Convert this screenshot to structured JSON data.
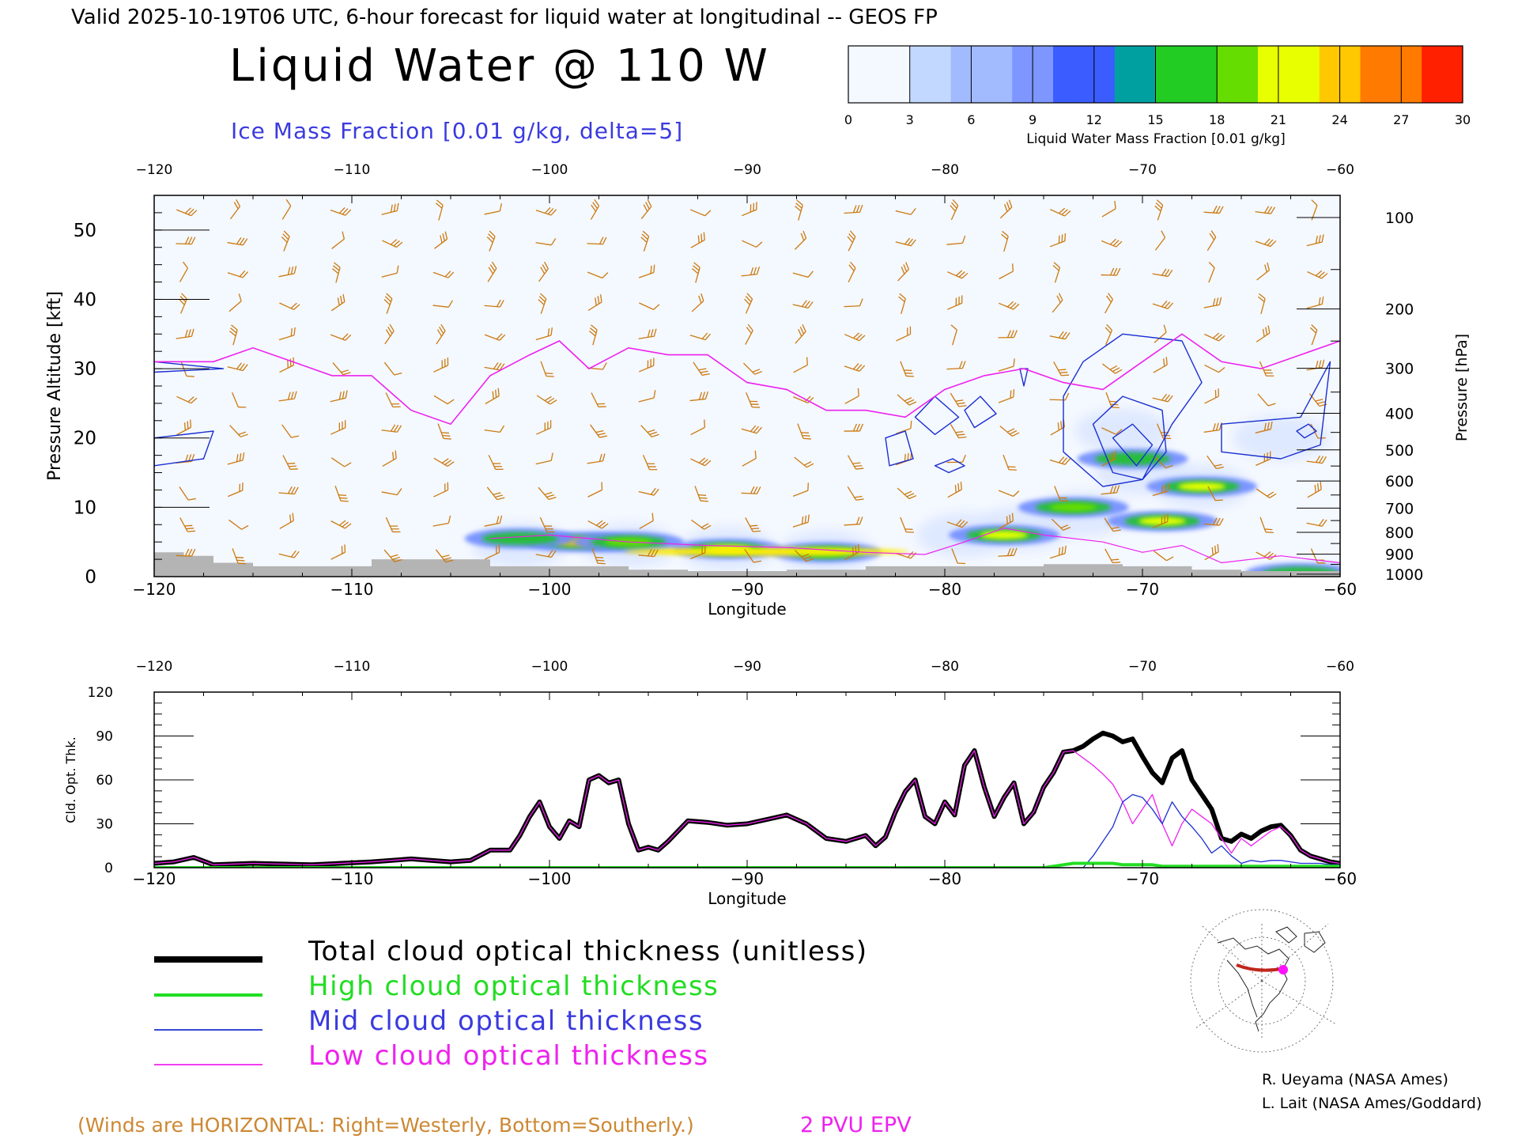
{
  "header": {
    "valid_line": "Valid 2025-10-19T06 UTC, 6-hour forecast for liquid water at longitudinal -- GEOS FP",
    "main_title": "Liquid Water @ 110 W",
    "subtitle": "Ice Mass Fraction [0.01 g/kg, delta=5]"
  },
  "colorbar": {
    "ticks": [
      "0",
      "3",
      "6",
      "9",
      "12",
      "15",
      "18",
      "21",
      "24",
      "27",
      "30"
    ],
    "label": "Liquid Water Mass Fraction [0.01 g/kg]",
    "colors": [
      "#f4f8ff",
      "#c3d8ff",
      "#a2bbff",
      "#7e96ff",
      "#3b5cff",
      "#00a0a0",
      "#22cc22",
      "#66dd00",
      "#e8ff00",
      "#ffc800",
      "#ff7a00",
      "#ff2000"
    ]
  },
  "colors": {
    "liquid_water_low": "#9ab0ff",
    "liquid_water_mid": "#28c030",
    "liquid_water_high": "#ffee00",
    "liquid_water_peak": "#ff5000",
    "ice_contour": "#1a2fd0",
    "epv_contour": "#ee22ee",
    "wind_barbs": "#cc7a10",
    "terrain": "#b4b4b4",
    "total": "#000000",
    "high": "#22dd22",
    "mid": "#1a2fd0",
    "low": "#ee22ee"
  },
  "chart_data": [
    {
      "type": "heatmap",
      "panel": "cross-section",
      "x_ticks": [
        "-120",
        "-110",
        "-100",
        "-90",
        "-80",
        "-70",
        "-60"
      ],
      "top_x_ticks": [
        "-120",
        "-110",
        "-100",
        "-90",
        "-80",
        "-70",
        "-60"
      ],
      "xlabel": "Longitude",
      "xlim": [
        -120,
        -60
      ],
      "ylabel_left": "Pressure Altitude [kft]",
      "yticks_left": [
        "0",
        "10",
        "20",
        "30",
        "40",
        "50"
      ],
      "ylim_kft": [
        0,
        55
      ],
      "ylabel_right": "Pressure [hPa]",
      "yticks_right": [
        "100",
        "200",
        "300",
        "400",
        "500",
        "600",
        "700",
        "800",
        "900",
        "1000"
      ],
      "liquid_water_regions": [
        {
          "lon": -98.5,
          "kft": 5.0,
          "value": 24
        },
        {
          "lon": -96.0,
          "kft": 5.0,
          "value": 18
        },
        {
          "lon": -101.5,
          "kft": 5.5,
          "value": 15
        },
        {
          "lon": -91.0,
          "kft": 4.0,
          "value": 20
        },
        {
          "lon": -86.0,
          "kft": 3.5,
          "value": 18
        },
        {
          "lon": -77.0,
          "kft": 6.0,
          "value": 21
        },
        {
          "lon": -73.5,
          "kft": 10.0,
          "value": 18
        },
        {
          "lon": -70.5,
          "kft": 17.0,
          "value": 16
        },
        {
          "lon": -69.0,
          "kft": 8.0,
          "value": 20
        },
        {
          "lon": -67.0,
          "kft": 13.0,
          "value": 20
        },
        {
          "lon": -62.0,
          "kft": 0.5,
          "value": 12
        }
      ],
      "epv_2pvu_line": {
        "lon": [
          -120,
          -117,
          -115,
          -113,
          -111,
          -109,
          -107,
          -105,
          -103,
          -101,
          -99.5,
          -98,
          -96,
          -94,
          -92,
          -90,
          -88,
          -86,
          -84,
          -82,
          -80,
          -78,
          -76,
          -74,
          -72,
          -70,
          -68,
          -66,
          -64,
          -62,
          -60
        ],
        "kft": [
          31,
          31,
          33,
          31,
          29,
          29,
          24,
          22,
          29,
          32,
          34,
          30,
          33,
          32,
          32,
          28,
          27,
          24,
          24,
          23,
          27,
          29,
          30,
          28,
          27,
          31,
          35,
          31,
          30,
          32,
          34
        ]
      },
      "terrain_kft": {
        "lon": [
          -120,
          -118.5,
          -117,
          -115,
          -110.5,
          -109,
          -104,
          -103,
          -100,
          -96,
          -93,
          -88,
          -84,
          -79,
          -75,
          -71,
          -67.5,
          -65,
          -60
        ],
        "kft": [
          3.5,
          3.0,
          2.0,
          1.5,
          1.5,
          2.5,
          2.5,
          1.5,
          1.5,
          1.0,
          0.8,
          1.0,
          1.5,
          1.5,
          1.8,
          1.5,
          1.0,
          0.8,
          0.5
        ]
      }
    },
    {
      "type": "line",
      "panel": "optical-thickness",
      "xlabel": "Longitude",
      "ylabel": "Cld. Opt. Thk.",
      "xlim": [
        -120,
        -60
      ],
      "ylim": [
        0,
        120
      ],
      "x_ticks": [
        "-120",
        "-110",
        "-100",
        "-90",
        "-80",
        "-70",
        "-60"
      ],
      "top_x_ticks": [
        "-120",
        "-110",
        "-100",
        "-90",
        "-80",
        "-70",
        "-60"
      ],
      "y_ticks": [
        "0",
        "30",
        "60",
        "90",
        "120"
      ],
      "x": [
        -120,
        -119,
        -118,
        -117,
        -115,
        -112,
        -109,
        -107,
        -105,
        -104,
        -103,
        -102,
        -101.5,
        -101,
        -100.5,
        -100,
        -99.5,
        -99,
        -98.5,
        -98,
        -97.5,
        -97,
        -96.5,
        -96,
        -95.5,
        -95,
        -94.5,
        -94,
        -93,
        -92,
        -91,
        -90,
        -89,
        -88,
        -87,
        -86,
        -85,
        -84,
        -83.5,
        -83,
        -82.5,
        -82,
        -81.5,
        -81,
        -80.5,
        -80,
        -79.5,
        -79,
        -78.5,
        -78,
        -77.5,
        -77,
        -76.5,
        -76,
        -75.5,
        -75,
        -74.5,
        -74,
        -73.5,
        -73,
        -72.5,
        -72,
        -71.5,
        -71,
        -70.5,
        -70,
        -69.5,
        -69,
        -68.5,
        -68,
        -67.5,
        -67,
        -66.5,
        -66,
        -65.5,
        -65,
        -64.5,
        -64,
        -63.5,
        -63,
        -62.5,
        -62,
        -61.5,
        -61,
        -60.5,
        -60
      ],
      "series": [
        {
          "name": "Total cloud optical thickness (unitless)",
          "role": "total",
          "values": [
            3,
            4,
            7,
            2,
            3,
            2,
            4,
            6,
            4,
            5,
            12,
            12,
            22,
            35,
            45,
            28,
            20,
            32,
            28,
            60,
            63,
            58,
            60,
            30,
            12,
            14,
            12,
            18,
            32,
            31,
            29,
            30,
            33,
            36,
            30,
            20,
            18,
            22,
            15,
            21,
            38,
            52,
            60,
            35,
            30,
            45,
            36,
            70,
            80,
            55,
            35,
            48,
            58,
            30,
            38,
            55,
            65,
            79,
            80,
            83,
            88,
            92,
            90,
            86,
            88,
            76,
            65,
            58,
            75,
            80,
            60,
            50,
            40,
            20,
            18,
            23,
            20,
            25,
            28,
            29,
            22,
            12,
            8,
            6,
            4,
            3
          ]
        },
        {
          "name": "High cloud optical thickness",
          "role": "high",
          "values": [
            0,
            0,
            0,
            0,
            0,
            0,
            0,
            0,
            0,
            0,
            0,
            0,
            0,
            0,
            0,
            0,
            0,
            0,
            0,
            0,
            0,
            0,
            0,
            0,
            0,
            0,
            0,
            0,
            0,
            0,
            0,
            0,
            0,
            0,
            0,
            0,
            0,
            0,
            0,
            0,
            0,
            0,
            0,
            0,
            0,
            0,
            0,
            0,
            0,
            0,
            0,
            0,
            0,
            0,
            0,
            0,
            1,
            2,
            3,
            3,
            3,
            3,
            3,
            2,
            2,
            2,
            2,
            1,
            1,
            1,
            1,
            1,
            1,
            1,
            1,
            1,
            1,
            1,
            1,
            1,
            1,
            1,
            1,
            1,
            1,
            1
          ]
        },
        {
          "name": "Mid cloud optical thickness",
          "role": "mid",
          "values": [
            0,
            0,
            0,
            0,
            0,
            0,
            0,
            0,
            0,
            0,
            0,
            0,
            0,
            0,
            0,
            0,
            0,
            0,
            0,
            0,
            0,
            0,
            0,
            0,
            0,
            0,
            0,
            0,
            0,
            0,
            0,
            0,
            0,
            0,
            0,
            0,
            0,
            0,
            0,
            0,
            0,
            0,
            0,
            0,
            0,
            0,
            0,
            0,
            0,
            0,
            0,
            0,
            0,
            0,
            0,
            0,
            0,
            0,
            0,
            0,
            8,
            18,
            28,
            45,
            50,
            48,
            40,
            30,
            45,
            35,
            28,
            20,
            10,
            15,
            8,
            3,
            5,
            4,
            5,
            5,
            4,
            3,
            3,
            3,
            2,
            2
          ]
        },
        {
          "name": "Low cloud optical thickness",
          "role": "low",
          "values": [
            3,
            4,
            7,
            2,
            3,
            2,
            4,
            6,
            4,
            5,
            12,
            12,
            22,
            35,
            45,
            28,
            20,
            32,
            28,
            60,
            63,
            58,
            60,
            30,
            12,
            14,
            12,
            18,
            32,
            31,
            29,
            30,
            33,
            36,
            30,
            20,
            18,
            22,
            15,
            21,
            38,
            52,
            60,
            35,
            30,
            45,
            36,
            70,
            80,
            55,
            35,
            48,
            58,
            30,
            38,
            55,
            65,
            79,
            80,
            75,
            70,
            64,
            57,
            45,
            30,
            40,
            50,
            30,
            15,
            30,
            40,
            35,
            30,
            20,
            10,
            20,
            15,
            20,
            25,
            28,
            22,
            12,
            8,
            6,
            4,
            3
          ]
        }
      ]
    }
  ],
  "legend": {
    "total": "Total cloud optical thickness (unitless)",
    "high": "High cloud optical thickness",
    "mid": "Mid cloud optical thickness",
    "low": "Low cloud optical thickness"
  },
  "footer": {
    "winds_note": "(Winds are HORIZONTAL: Right=Westerly, Bottom=Southerly.)",
    "epv_note": "2 PVU EPV",
    "credit1": "R. Ueyama (NASA Ames)",
    "credit2": "L. Lait (NASA Ames/Goddard)"
  }
}
